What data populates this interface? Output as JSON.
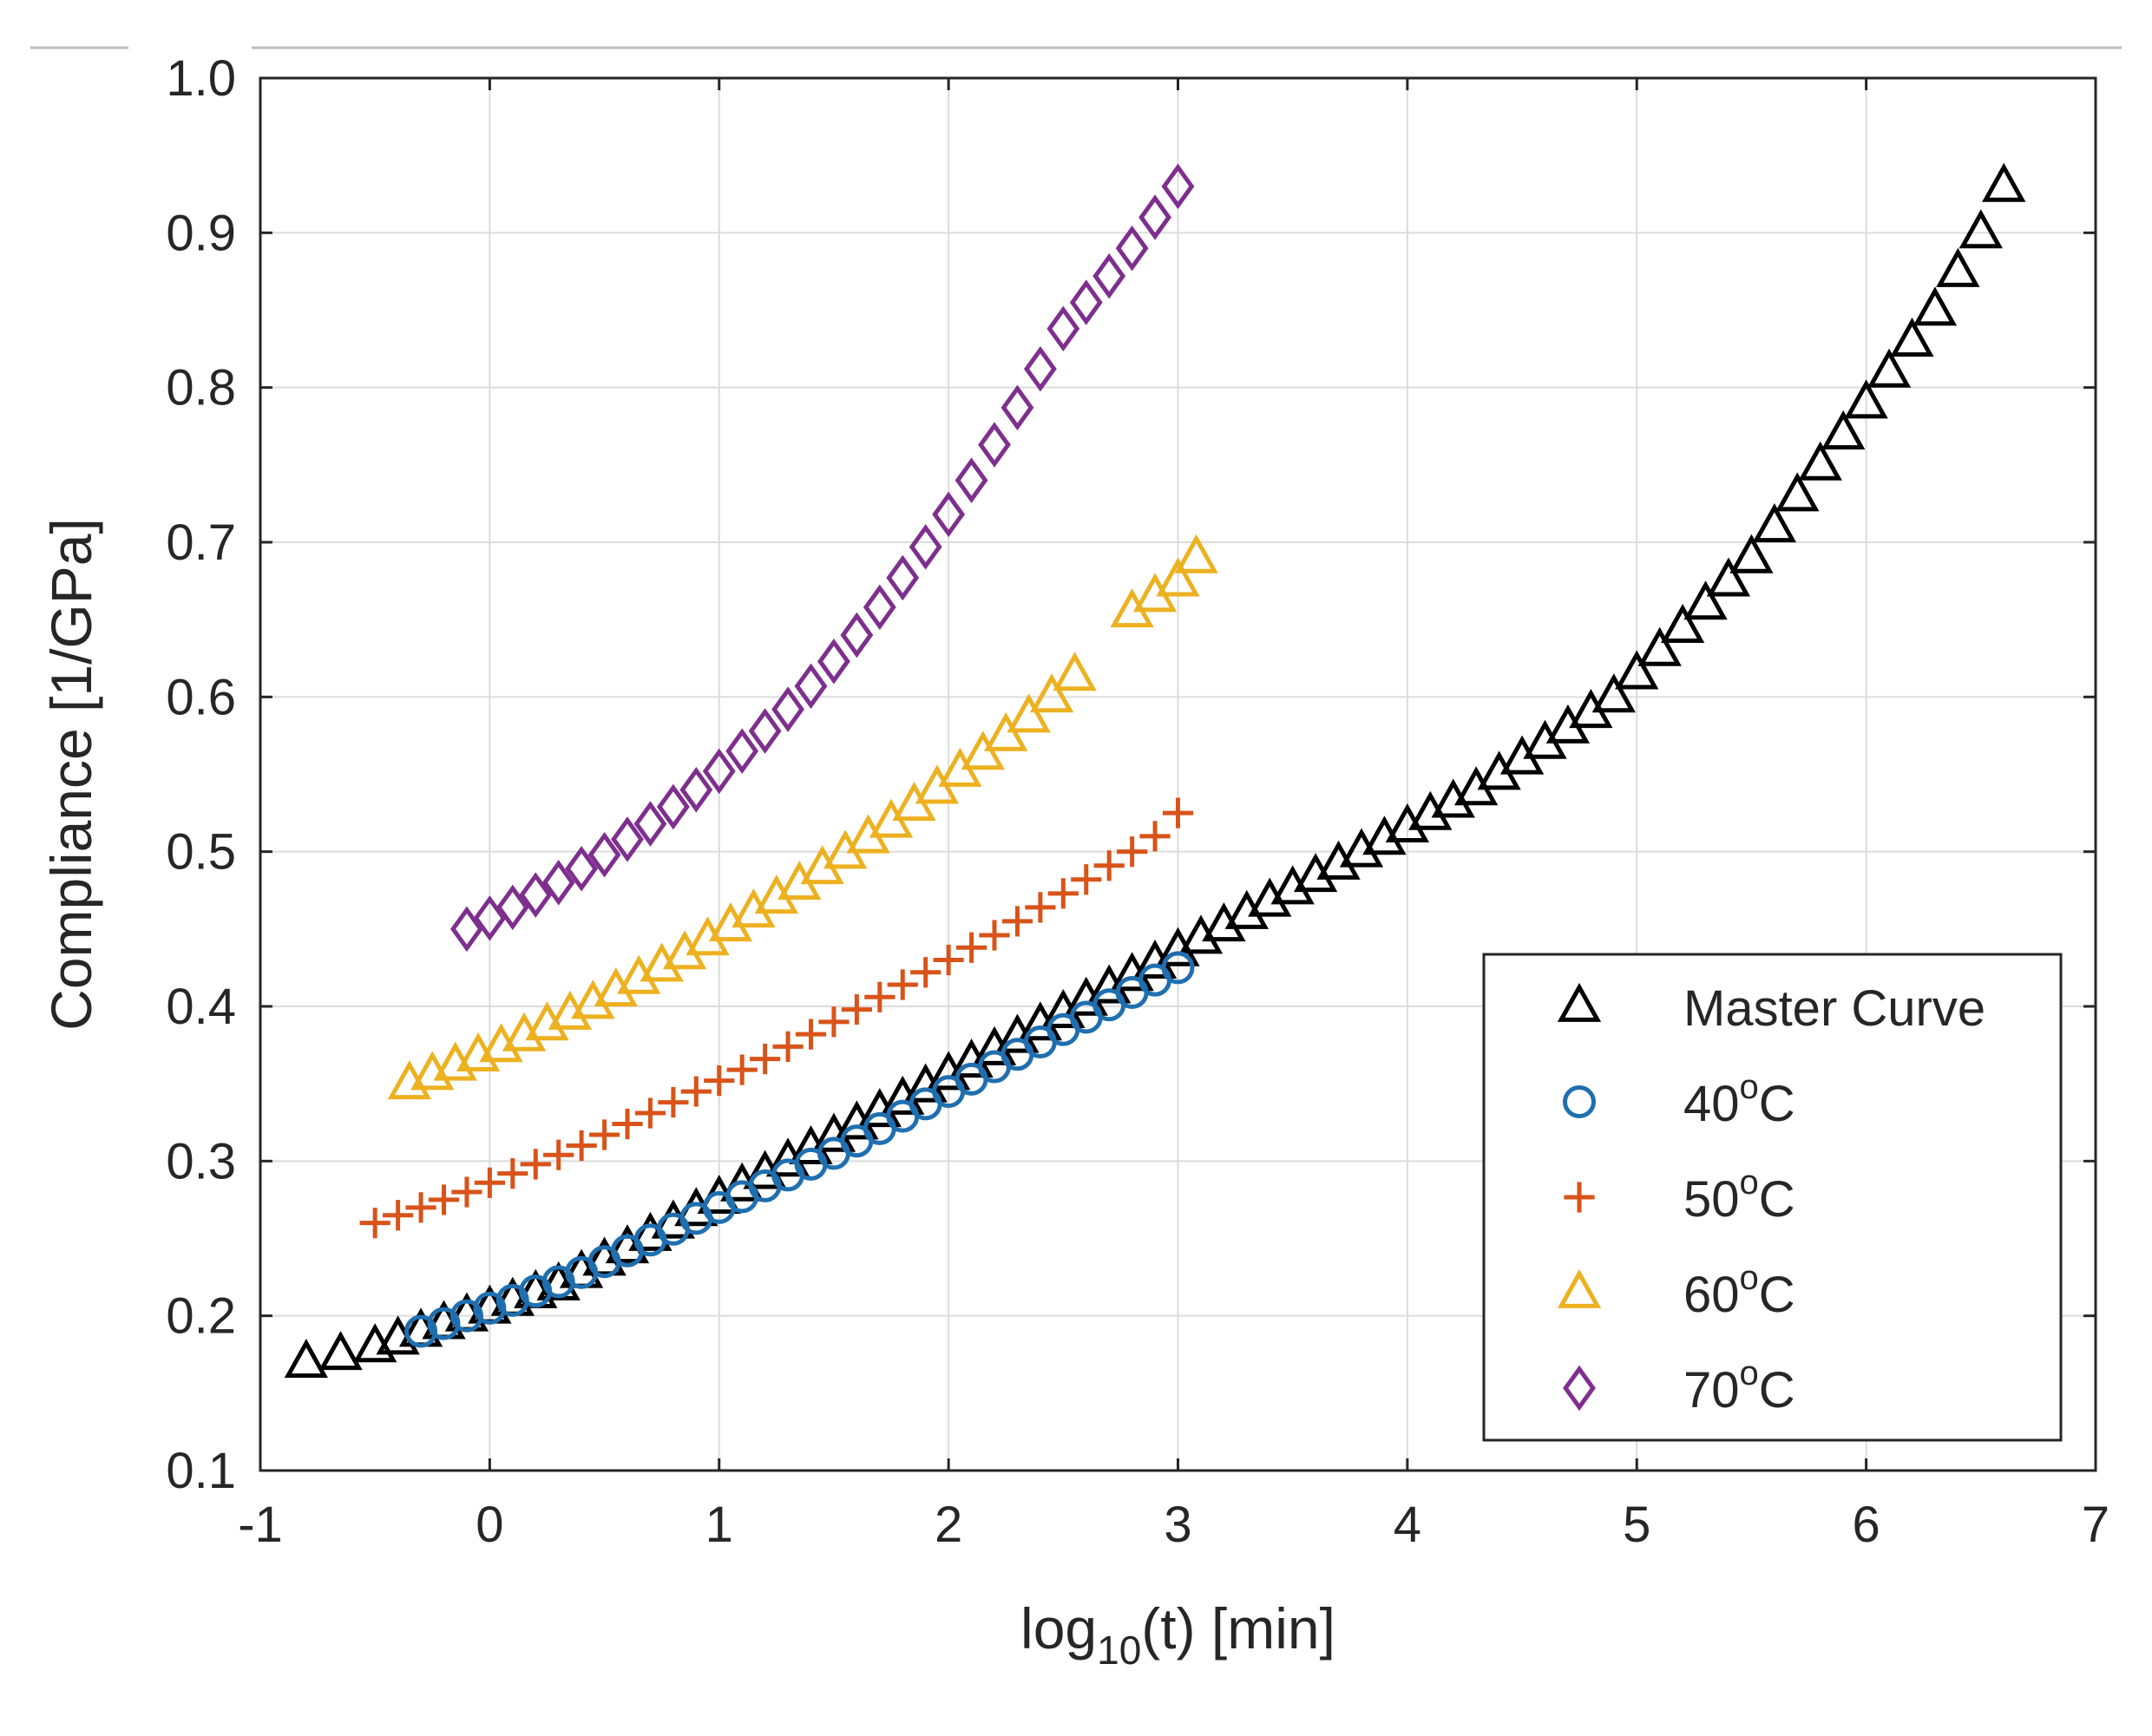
{
  "chart_data": {
    "type": "scatter",
    "title": "",
    "xlabel": {
      "base": "log",
      "sub": "10",
      "rest": "(t) [min]"
    },
    "ylabel": "Compliance [1/GPa]",
    "xlim": [
      -1,
      7
    ],
    "ylim": [
      0.1,
      1.0
    ],
    "xticks": [
      -1,
      0,
      1,
      2,
      3,
      4,
      5,
      6,
      7
    ],
    "xtick_labels": [
      "-1",
      "0",
      "1",
      "2",
      "3",
      "4",
      "5",
      "6",
      "7"
    ],
    "yticks": [
      0.1,
      0.2,
      0.3,
      0.4,
      0.5,
      0.6,
      0.7,
      0.8,
      0.9,
      1.0
    ],
    "ytick_labels": [
      "0.1",
      "0.2",
      "0.3",
      "0.4",
      "0.5",
      "0.6",
      "0.7",
      "0.8",
      "0.9",
      "1.0"
    ],
    "grid": true,
    "legend_position": "bottom-right",
    "series": [
      {
        "name": "Master Curve",
        "label_main": "Master Curve",
        "label_sup": "",
        "label_suffix": "",
        "marker": "triangle",
        "color": "#000000",
        "x": [
          -0.8,
          -0.65,
          -0.5,
          -0.4,
          -0.3,
          -0.2,
          -0.1,
          0.0,
          0.1,
          0.2,
          0.3,
          0.4,
          0.5,
          0.6,
          0.7,
          0.8,
          0.9,
          1.0,
          1.1,
          1.2,
          1.3,
          1.4,
          1.5,
          1.6,
          1.7,
          1.8,
          1.9,
          2.0,
          2.1,
          2.2,
          2.3,
          2.4,
          2.5,
          2.6,
          2.7,
          2.8,
          2.9,
          3.0,
          3.1,
          3.2,
          3.3,
          3.4,
          3.5,
          3.6,
          3.7,
          3.8,
          3.9,
          4.0,
          4.1,
          4.2,
          4.3,
          4.4,
          4.5,
          4.6,
          4.7,
          4.8,
          4.9,
          5.0,
          5.1,
          5.2,
          5.3,
          5.4,
          5.5,
          5.6,
          5.7,
          5.8,
          5.9,
          6.0,
          6.1,
          6.2,
          6.3,
          6.4,
          6.5,
          6.6
        ],
        "y": [
          0.17,
          0.175,
          0.18,
          0.185,
          0.19,
          0.195,
          0.2,
          0.205,
          0.21,
          0.215,
          0.22,
          0.228,
          0.236,
          0.244,
          0.252,
          0.26,
          0.268,
          0.276,
          0.284,
          0.292,
          0.3,
          0.308,
          0.316,
          0.324,
          0.332,
          0.34,
          0.348,
          0.356,
          0.364,
          0.372,
          0.38,
          0.388,
          0.396,
          0.404,
          0.412,
          0.42,
          0.428,
          0.436,
          0.444,
          0.452,
          0.46,
          0.468,
          0.476,
          0.484,
          0.492,
          0.5,
          0.508,
          0.516,
          0.524,
          0.532,
          0.54,
          0.55,
          0.56,
          0.57,
          0.58,
          0.59,
          0.6,
          0.615,
          0.63,
          0.645,
          0.66,
          0.675,
          0.69,
          0.71,
          0.73,
          0.75,
          0.77,
          0.79,
          0.81,
          0.83,
          0.85,
          0.875,
          0.9,
          0.93
        ]
      },
      {
        "name": "40°C",
        "label_main": "40",
        "label_sup": "o",
        "label_suffix": "C",
        "marker": "circle",
        "color": "#1f6fb0",
        "x": [
          -0.3,
          -0.2,
          -0.1,
          0.0,
          0.1,
          0.2,
          0.3,
          0.4,
          0.5,
          0.6,
          0.7,
          0.8,
          0.9,
          1.0,
          1.1,
          1.2,
          1.3,
          1.4,
          1.5,
          1.6,
          1.7,
          1.8,
          1.9,
          2.0,
          2.1,
          2.2,
          2.3,
          2.4,
          2.5,
          2.6,
          2.7,
          2.8,
          2.9,
          3.0
        ],
        "y": [
          0.19,
          0.195,
          0.2,
          0.205,
          0.21,
          0.216,
          0.222,
          0.228,
          0.235,
          0.242,
          0.249,
          0.256,
          0.263,
          0.27,
          0.277,
          0.284,
          0.291,
          0.298,
          0.305,
          0.313,
          0.321,
          0.329,
          0.337,
          0.345,
          0.353,
          0.361,
          0.369,
          0.377,
          0.385,
          0.393,
          0.401,
          0.409,
          0.417,
          0.425
        ]
      },
      {
        "name": "50°C",
        "label_main": "50",
        "label_sup": "o",
        "label_suffix": "C",
        "marker": "plus",
        "color": "#d95319",
        "x": [
          -0.5,
          -0.4,
          -0.3,
          -0.2,
          -0.1,
          0.0,
          0.1,
          0.2,
          0.3,
          0.4,
          0.5,
          0.6,
          0.7,
          0.8,
          0.9,
          1.0,
          1.1,
          1.2,
          1.3,
          1.4,
          1.5,
          1.6,
          1.7,
          1.8,
          1.9,
          2.0,
          2.1,
          2.2,
          2.3,
          2.4,
          2.5,
          2.6,
          2.7,
          2.8,
          2.9,
          3.0
        ],
        "y": [
          0.26,
          0.265,
          0.27,
          0.275,
          0.28,
          0.286,
          0.292,
          0.298,
          0.304,
          0.31,
          0.317,
          0.324,
          0.331,
          0.338,
          0.345,
          0.352,
          0.359,
          0.366,
          0.374,
          0.382,
          0.39,
          0.398,
          0.406,
          0.414,
          0.422,
          0.43,
          0.438,
          0.446,
          0.455,
          0.464,
          0.473,
          0.482,
          0.491,
          0.5,
          0.51,
          0.525
        ]
      },
      {
        "name": "60°C",
        "label_main": "60",
        "label_sup": "o",
        "label_suffix": "C",
        "marker": "triangle",
        "color": "#edb120",
        "x": [
          -0.35,
          -0.25,
          -0.15,
          -0.05,
          0.05,
          0.15,
          0.25,
          0.35,
          0.45,
          0.55,
          0.65,
          0.75,
          0.85,
          0.95,
          1.05,
          1.15,
          1.25,
          1.35,
          1.45,
          1.55,
          1.65,
          1.75,
          1.85,
          1.95,
          2.05,
          2.15,
          2.25,
          2.35,
          2.45,
          2.55,
          2.8,
          2.9,
          3.0,
          3.08
        ],
        "y": [
          0.35,
          0.356,
          0.362,
          0.368,
          0.374,
          0.381,
          0.388,
          0.395,
          0.402,
          0.41,
          0.418,
          0.426,
          0.434,
          0.443,
          0.452,
          0.461,
          0.47,
          0.479,
          0.489,
          0.499,
          0.509,
          0.519,
          0.53,
          0.541,
          0.552,
          0.563,
          0.575,
          0.587,
          0.6,
          0.614,
          0.655,
          0.665,
          0.675,
          0.69
        ]
      },
      {
        "name": "70°C",
        "label_main": "70",
        "label_sup": "o",
        "label_suffix": "C",
        "marker": "diamond",
        "color": "#7e2f8e",
        "x": [
          -0.1,
          0.0,
          0.1,
          0.2,
          0.3,
          0.4,
          0.5,
          0.6,
          0.7,
          0.8,
          0.9,
          1.0,
          1.1,
          1.2,
          1.3,
          1.4,
          1.5,
          1.6,
          1.7,
          1.8,
          1.9,
          2.0,
          2.1,
          2.2,
          2.3,
          2.4,
          2.5,
          2.6,
          2.7,
          2.8,
          2.9,
          3.0
        ],
        "y": [
          0.45,
          0.457,
          0.464,
          0.472,
          0.48,
          0.489,
          0.498,
          0.508,
          0.518,
          0.529,
          0.54,
          0.552,
          0.565,
          0.578,
          0.592,
          0.607,
          0.623,
          0.64,
          0.658,
          0.677,
          0.697,
          0.718,
          0.74,
          0.763,
          0.787,
          0.812,
          0.838,
          0.855,
          0.872,
          0.89,
          0.91,
          0.93
        ]
      }
    ]
  }
}
